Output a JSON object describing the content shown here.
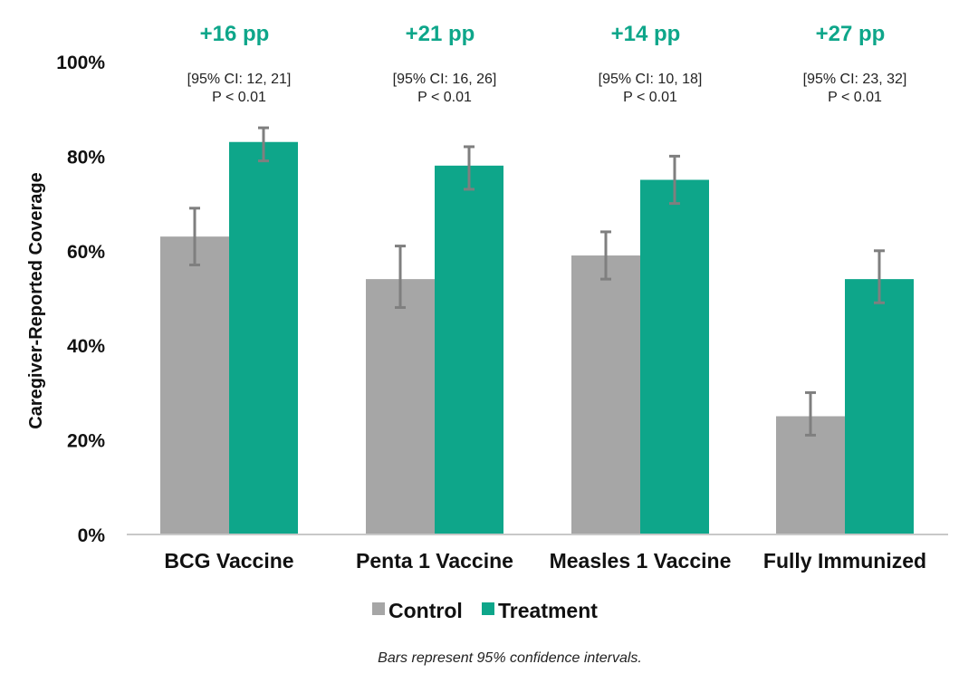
{
  "chart_data": {
    "type": "bar",
    "categories": [
      "BCG Vaccine",
      "Penta 1 Vaccine",
      "Measles 1 Vaccine",
      "Fully Immunized"
    ],
    "series": [
      {
        "name": "Control",
        "color": "#a6a6a6",
        "values": [
          63,
          54,
          59,
          25
        ],
        "ci_low": [
          57,
          48,
          54,
          21
        ],
        "ci_high": [
          69,
          61,
          64,
          30
        ]
      },
      {
        "name": "Treatment",
        "color": "#0ea68a",
        "values": [
          83,
          78,
          75,
          54
        ],
        "ci_low": [
          79,
          73,
          70,
          49
        ],
        "ci_high": [
          86,
          82,
          80,
          60
        ]
      }
    ],
    "ylabel": "Caregiver-Reported Coverage",
    "xlabel": "",
    "ylim": [
      0,
      100
    ],
    "yticks": [
      "0%",
      "20%",
      "40%",
      "60%",
      "80%",
      "100%"
    ],
    "ytick_values": [
      0,
      20,
      40,
      60,
      80,
      100
    ],
    "grid": false,
    "legend_position": "bottom",
    "errorbar_color": "#7f7f7f",
    "annotations": [
      {
        "effect": "+16 pp",
        "ci": "[95% CI: 12, 21]",
        "p": "P < 0.01"
      },
      {
        "effect": "+21 pp",
        "ci": "[95% CI: 16, 26]",
        "p": "P < 0.01"
      },
      {
        "effect": "+14 pp",
        "ci": "[95% CI: 10, 18]",
        "p": "P < 0.01"
      },
      {
        "effect": "+27 pp",
        "ci": "[95% CI: 23, 32]",
        "p": "P < 0.01"
      }
    ],
    "note": "Bars represent 95% confidence intervals."
  }
}
